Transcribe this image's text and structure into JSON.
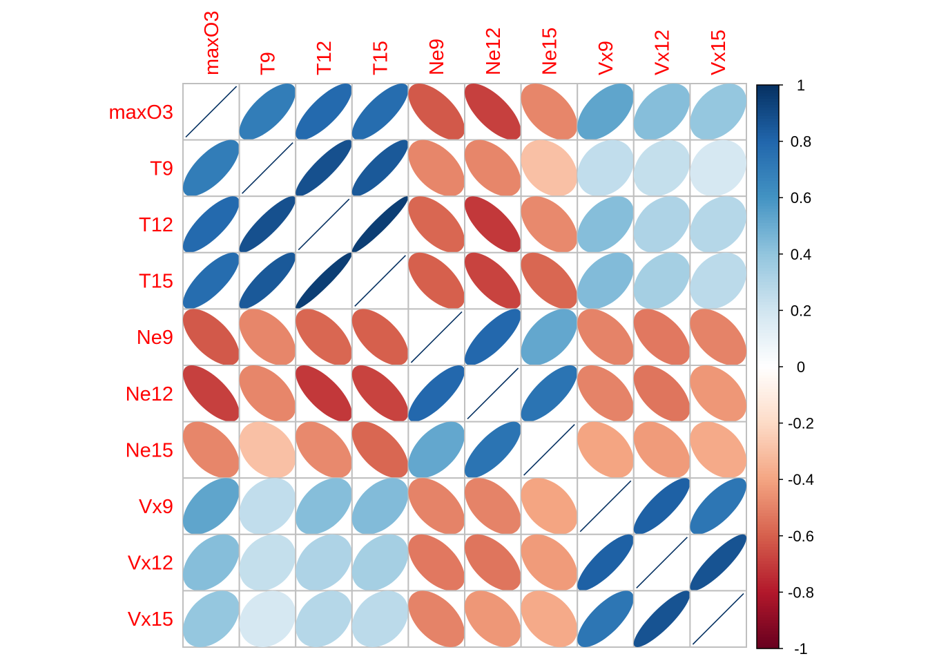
{
  "chart_data": {
    "type": "heatmap",
    "subtype": "correlation-matrix-ellipse",
    "variables": [
      "maxO3",
      "T9",
      "T12",
      "T15",
      "Ne9",
      "Ne12",
      "Ne15",
      "Vx9",
      "Vx12",
      "Vx15"
    ],
    "matrix": [
      [
        1.0,
        0.7,
        0.78,
        0.77,
        -0.62,
        -0.69,
        -0.49,
        0.53,
        0.43,
        0.39
      ],
      [
        0.7,
        1.0,
        0.88,
        0.85,
        -0.49,
        -0.49,
        -0.3,
        0.25,
        0.24,
        0.18
      ],
      [
        0.78,
        0.88,
        1.0,
        0.95,
        -0.58,
        -0.71,
        -0.48,
        0.43,
        0.31,
        0.29
      ],
      [
        0.77,
        0.85,
        0.95,
        1.0,
        -0.6,
        -0.68,
        -0.58,
        0.44,
        0.34,
        0.27
      ],
      [
        -0.62,
        -0.49,
        -0.58,
        -0.6,
        1.0,
        0.79,
        0.52,
        -0.5,
        -0.53,
        -0.5
      ],
      [
        -0.69,
        -0.49,
        -0.71,
        -0.68,
        0.79,
        1.0,
        0.74,
        -0.5,
        -0.54,
        -0.44
      ],
      [
        -0.49,
        -0.3,
        -0.48,
        -0.58,
        0.52,
        0.74,
        1.0,
        -0.4,
        -0.43,
        -0.38
      ],
      [
        0.53,
        0.25,
        0.43,
        0.44,
        -0.5,
        -0.5,
        -0.4,
        1.0,
        0.82,
        0.73
      ],
      [
        0.43,
        0.24,
        0.31,
        0.34,
        -0.53,
        -0.54,
        -0.43,
        0.82,
        1.0,
        0.87
      ],
      [
        0.39,
        0.18,
        0.29,
        0.27,
        -0.5,
        -0.44,
        -0.38,
        0.73,
        0.87,
        1.0
      ]
    ],
    "colorbar": {
      "range": [
        -1,
        1
      ],
      "tick_labels": [
        "1",
        "0.8",
        "0.6",
        "0.4",
        "0.2",
        "0",
        "-0.2",
        "-0.4",
        "-0.6",
        "-0.8",
        "-1"
      ],
      "tick_values": [
        1,
        0.8,
        0.6,
        0.4,
        0.2,
        0,
        -0.2,
        -0.4,
        -0.6,
        -0.8,
        -1
      ]
    },
    "palette": [
      "#67001f",
      "#b2182b",
      "#d6604d",
      "#f4a582",
      "#fddbc7",
      "#ffffff",
      "#d1e5f0",
      "#92c5de",
      "#4393c3",
      "#2166ac",
      "#053061"
    ],
    "label_color": "#ff0000",
    "grid_color": "#bfbfbf",
    "diagonal_line_color": "#053061",
    "grid": true,
    "legend_placement": "right",
    "title": "",
    "xlabel": "",
    "ylabel": ""
  }
}
